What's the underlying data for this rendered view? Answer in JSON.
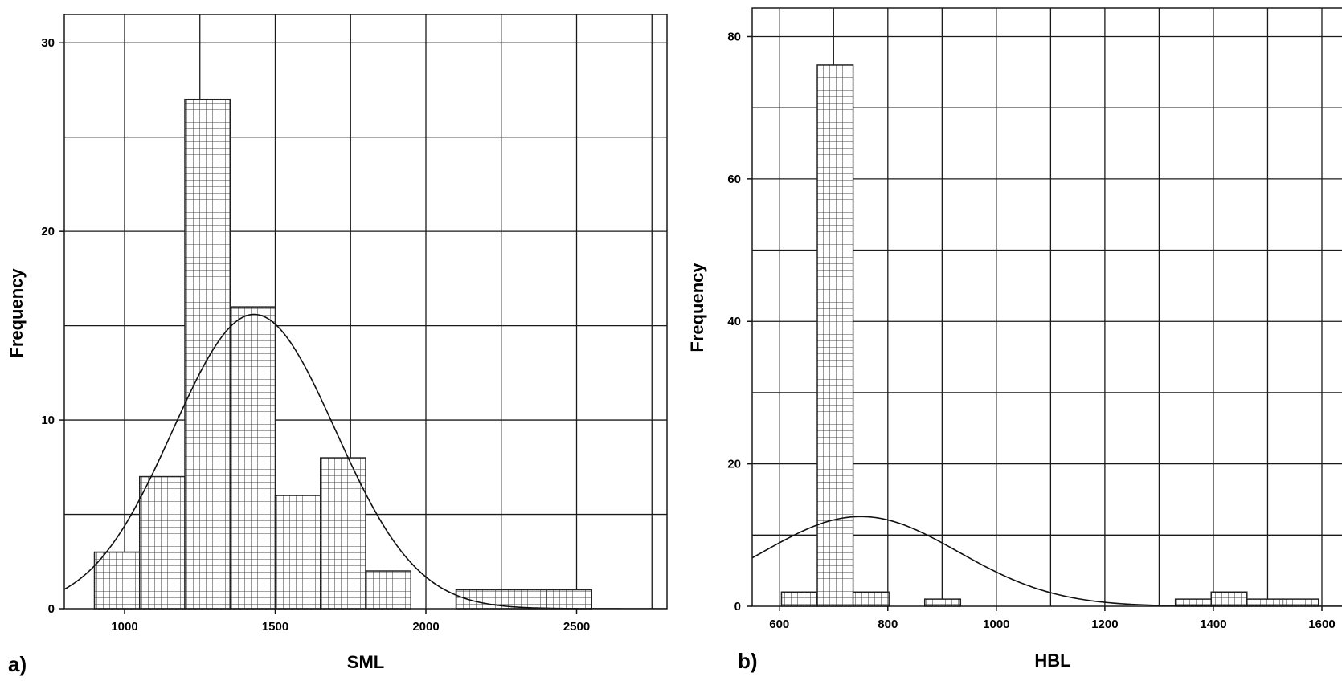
{
  "chart_data": [
    {
      "type": "histogram",
      "panel_label": "a)",
      "xlabel": "SML",
      "ylabel": "Frequency",
      "xlim": [
        800,
        2800
      ],
      "ylim": [
        0,
        31.5
      ],
      "x_ticks": [
        1000,
        1500,
        2000,
        2500
      ],
      "y_ticks": [
        0,
        10,
        20,
        30
      ],
      "grid": true,
      "bin_width": 150,
      "bins": [
        {
          "start": 900,
          "end": 1050,
          "count": 3
        },
        {
          "start": 1050,
          "end": 1200,
          "count": 7
        },
        {
          "start": 1200,
          "end": 1350,
          "count": 27
        },
        {
          "start": 1350,
          "end": 1500,
          "count": 16
        },
        {
          "start": 1500,
          "end": 1650,
          "count": 6
        },
        {
          "start": 1650,
          "end": 1800,
          "count": 8
        },
        {
          "start": 1800,
          "end": 1950,
          "count": 2
        },
        {
          "start": 2100,
          "end": 2250,
          "count": 1
        },
        {
          "start": 2250,
          "end": 2400,
          "count": 1
        },
        {
          "start": 2400,
          "end": 2550,
          "count": 1
        }
      ],
      "normal_curve": {
        "mean": 1430,
        "sd": 270,
        "peak": 15.6
      }
    },
    {
      "type": "histogram",
      "panel_label": "b)",
      "xlabel": "HBL",
      "ylabel": "Frequency",
      "xlim": [
        550,
        1640
      ],
      "ylim": [
        0,
        84
      ],
      "x_ticks": [
        600,
        800,
        1000,
        1200,
        1400,
        1600
      ],
      "y_ticks": [
        0,
        20,
        40,
        60,
        80
      ],
      "grid": true,
      "bin_width": 66,
      "bins": [
        {
          "start": 604,
          "end": 670,
          "count": 2
        },
        {
          "start": 670,
          "end": 736,
          "count": 76
        },
        {
          "start": 736,
          "end": 802,
          "count": 2
        },
        {
          "start": 868,
          "end": 934,
          "count": 1
        },
        {
          "start": 1330,
          "end": 1396,
          "count": 1
        },
        {
          "start": 1396,
          "end": 1462,
          "count": 2
        },
        {
          "start": 1462,
          "end": 1528,
          "count": 1
        },
        {
          "start": 1528,
          "end": 1594,
          "count": 1
        }
      ],
      "normal_curve": {
        "mean": 750,
        "sd": 180,
        "peak": 12.6
      }
    }
  ],
  "colors": {
    "ink": "#111111",
    "bar_fill": "#ffffff",
    "bar_hatch": "#444444"
  }
}
